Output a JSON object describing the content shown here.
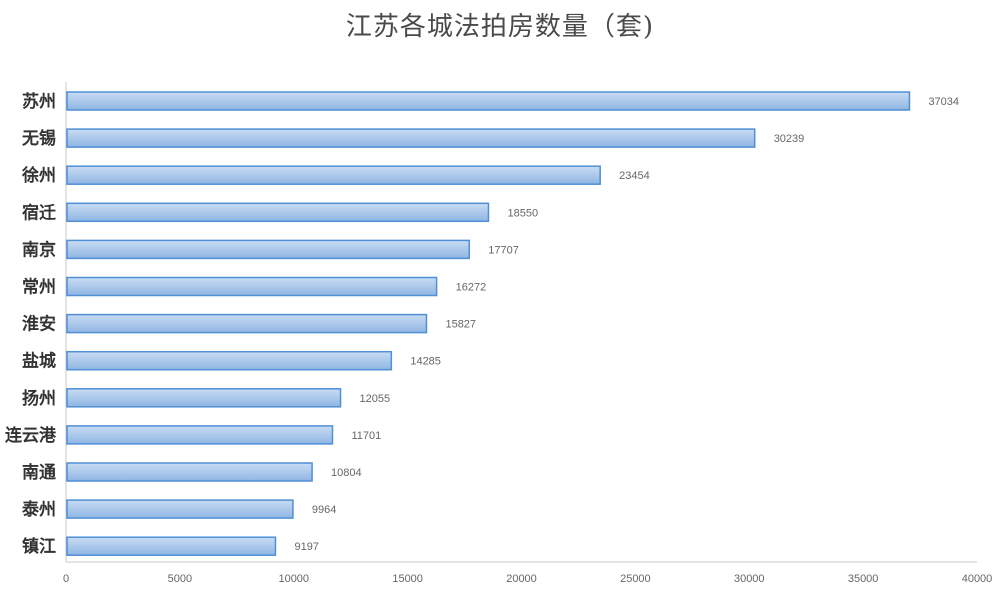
{
  "chart_data": {
    "type": "bar",
    "orientation": "horizontal",
    "title": "江苏各城法拍房数量（套)",
    "categories": [
      "苏州",
      "无锡",
      "徐州",
      "宿迁",
      "南京",
      "常州",
      "淮安",
      "盐城",
      "扬州",
      "连云港",
      "南通",
      "泰州",
      "镇江"
    ],
    "values": [
      37034,
      30239,
      23454,
      18550,
      17707,
      16272,
      15827,
      14285,
      12055,
      11701,
      10804,
      9964,
      9197
    ],
    "xticks": [
      0,
      5000,
      10000,
      15000,
      20000,
      25000,
      30000,
      35000,
      40000
    ],
    "xlim": [
      0,
      40000
    ],
    "grid": false,
    "legend": "none",
    "colors": {
      "bar_fill_top": "#c9dcf3",
      "bar_fill_bottom": "#8fb5e3",
      "bar_stroke": "#4f8fd6",
      "axis": "#c8c8c8"
    }
  }
}
